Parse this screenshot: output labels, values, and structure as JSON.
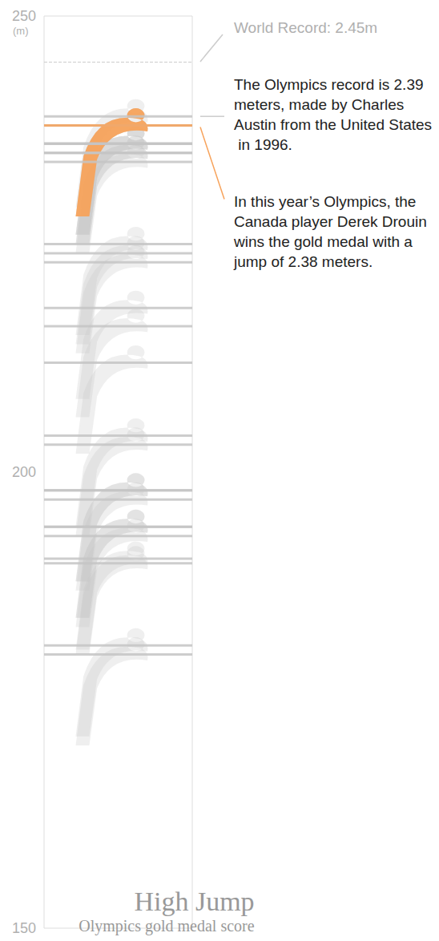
{
  "chart_data": {
    "type": "scatter",
    "title": "High Jump",
    "subtitle": "Olympics gold medal score",
    "y_label": "(m)",
    "values": [
      181,
      190,
      180,
      190.5,
      193,
      194,
      198,
      194,
      197,
      203,
      198,
      204,
      212,
      216,
      218,
      224,
      223,
      225,
      236,
      235,
      238,
      234,
      239,
      235,
      236,
      236,
      238,
      238
    ],
    "colors": [
      "#c4c4c4",
      "#c4c4c4",
      "#c4c4c4",
      "#c4c4c4",
      "#c4c4c4",
      "#c4c4c4",
      "#c4c4c4",
      "#c4c4c4",
      "#c4c4c4",
      "#c4c4c4",
      "#c4c4c4",
      "#c4c4c4",
      "#c4c4c4",
      "#c4c4c4",
      "#c4c4c4",
      "#c4c4c4",
      "#c4c4c4",
      "#c4c4c4",
      "#c4c4c4",
      "#c4c4c4",
      "#c4c4c4",
      "#c4c4c4",
      "#c4c4c4",
      "#c4c4c4",
      "#c4c4c4",
      "#c4c4c4",
      "#c4c4c4",
      "#f7a35c"
    ],
    "ylim": [
      150,
      250
    ],
    "yticks": [
      150,
      200,
      250
    ],
    "grid": false,
    "tick_labels": "y",
    "annotations": [
      {
        "text": "World Record: 2.45m",
        "value": 245,
        "line_style": "dashed"
      },
      {
        "text": "The Olympics record is 2.39 meters, made by Charles Austin from the United States in 1996.",
        "value": 239
      },
      {
        "text": "In this year’s Olympics, the Canada player Derek Drouin wins the gold medal with a jump of 2.38 meters.",
        "value": 238
      }
    ]
  }
}
